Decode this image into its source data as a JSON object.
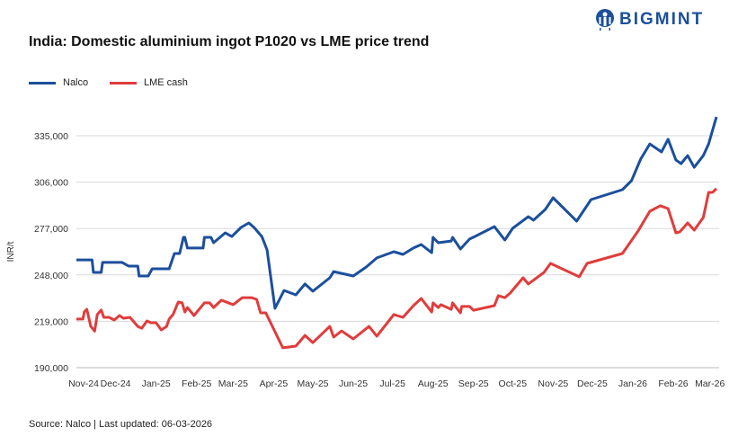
{
  "logo": {
    "text": "BIGMINT",
    "color": "#1c4f9c"
  },
  "source": "Source: Nalco | Last updated: 06-03-2026",
  "chart_data": {
    "type": "line",
    "title": "India: Domestic aluminium ingot P1020 vs LME price trend",
    "xlabel": "",
    "ylabel": "INR/t",
    "ylim": [
      190000,
      335000
    ],
    "yticks": [
      190000,
      219000,
      248000,
      277000,
      306000,
      335000
    ],
    "ytick_labels": [
      "190,000",
      "219,000",
      "248,000",
      "277,000",
      "306,000",
      "335,000"
    ],
    "xtick_labels": [
      "Nov-24",
      "Dec-24",
      "Jan-25",
      "Feb-25",
      "Mar-25",
      "Apr-25",
      "May-25",
      "Jun-25",
      "Jul-25",
      "Aug-25",
      "Sep-25",
      "Oct-25",
      "Nov-25",
      "Dec-25",
      "Jan-26",
      "Feb-26",
      "Mar-26"
    ],
    "xticks": [
      "2024-11-01",
      "2024-12-01",
      "2025-01-01",
      "2025-02-01",
      "2025-03-01",
      "2025-04-01",
      "2025-05-01",
      "2025-06-01",
      "2025-07-01",
      "2025-08-01",
      "2025-09-01",
      "2025-10-01",
      "2025-11-01",
      "2025-12-01",
      "2026-01-01",
      "2026-02-01",
      "2026-03-01"
    ],
    "grid": "horizontal",
    "legend": "top-left",
    "series": [
      {
        "name": "Nalco",
        "color": "#1c4f9c",
        "points": [
          [
            "2024-11-01",
            257400
          ],
          [
            "2024-11-13",
            257400
          ],
          [
            "2024-11-14",
            249600
          ],
          [
            "2024-11-20",
            249600
          ],
          [
            "2024-11-21",
            255800
          ],
          [
            "2024-12-06",
            255800
          ],
          [
            "2024-12-11",
            253500
          ],
          [
            "2024-12-18",
            253500
          ],
          [
            "2024-12-19",
            247300
          ],
          [
            "2024-12-26",
            247300
          ],
          [
            "2024-12-29",
            251800
          ],
          [
            "2025-01-11",
            251800
          ],
          [
            "2025-01-15",
            261400
          ],
          [
            "2025-01-19",
            261400
          ],
          [
            "2025-01-22",
            271500
          ],
          [
            "2025-01-23",
            271500
          ],
          [
            "2025-01-25",
            264800
          ],
          [
            "2025-02-06",
            264800
          ],
          [
            "2025-02-07",
            271500
          ],
          [
            "2025-02-12",
            271500
          ],
          [
            "2025-02-14",
            268100
          ],
          [
            "2025-02-23",
            274300
          ],
          [
            "2025-02-28",
            272000
          ],
          [
            "2025-03-07",
            277700
          ],
          [
            "2025-03-13",
            280500
          ],
          [
            "2025-03-17",
            277700
          ],
          [
            "2025-03-23",
            272000
          ],
          [
            "2025-03-27",
            263600
          ],
          [
            "2025-04-02",
            227100
          ],
          [
            "2025-04-09",
            238300
          ],
          [
            "2025-04-18",
            235500
          ],
          [
            "2025-04-25",
            242300
          ],
          [
            "2025-05-01",
            237800
          ],
          [
            "2025-05-14",
            246200
          ],
          [
            "2025-05-17",
            250100
          ],
          [
            "2025-06-01",
            247300
          ],
          [
            "2025-06-11",
            253000
          ],
          [
            "2025-06-19",
            258600
          ],
          [
            "2025-07-02",
            262500
          ],
          [
            "2025-07-09",
            260800
          ],
          [
            "2025-07-17",
            264800
          ],
          [
            "2025-07-23",
            267000
          ],
          [
            "2025-07-31",
            261900
          ],
          [
            "2025-08-01",
            271500
          ],
          [
            "2025-08-05",
            268100
          ],
          [
            "2025-08-15",
            269200
          ],
          [
            "2025-08-16",
            271500
          ],
          [
            "2025-08-22",
            264200
          ],
          [
            "2025-08-29",
            270400
          ],
          [
            "2025-09-02",
            272000
          ],
          [
            "2025-09-17",
            278200
          ],
          [
            "2025-09-25",
            269800
          ],
          [
            "2025-10-01",
            277100
          ],
          [
            "2025-10-13",
            284400
          ],
          [
            "2025-10-17",
            282200
          ],
          [
            "2025-10-26",
            288900
          ],
          [
            "2025-11-01",
            296200
          ],
          [
            "2025-11-19",
            281600
          ],
          [
            "2025-11-30",
            295100
          ],
          [
            "2025-12-24",
            301300
          ],
          [
            "2025-12-31",
            306900
          ],
          [
            "2026-01-07",
            320400
          ],
          [
            "2026-01-14",
            329900
          ],
          [
            "2026-01-23",
            324900
          ],
          [
            "2026-01-28",
            332800
          ],
          [
            "2026-02-03",
            319800
          ],
          [
            "2026-02-07",
            317600
          ],
          [
            "2026-02-12",
            322600
          ],
          [
            "2026-02-17",
            315300
          ],
          [
            "2026-02-24",
            322600
          ],
          [
            "2026-02-28",
            329900
          ],
          [
            "2026-03-06",
            346800
          ]
        ]
      },
      {
        "name": "LME cash",
        "color": "#e03c3c",
        "points": [
          [
            "2024-11-01",
            220400
          ],
          [
            "2024-11-06",
            220400
          ],
          [
            "2024-11-07",
            224800
          ],
          [
            "2024-11-09",
            226500
          ],
          [
            "2024-11-12",
            215800
          ],
          [
            "2024-11-15",
            212900
          ],
          [
            "2024-11-17",
            223200
          ],
          [
            "2024-11-20",
            226000
          ],
          [
            "2024-11-22",
            221500
          ],
          [
            "2024-11-26",
            221500
          ],
          [
            "2024-11-30",
            219800
          ],
          [
            "2024-12-04",
            222600
          ],
          [
            "2024-12-07",
            220900
          ],
          [
            "2024-12-12",
            221500
          ],
          [
            "2024-12-18",
            215800
          ],
          [
            "2024-12-21",
            214700
          ],
          [
            "2024-12-25",
            219200
          ],
          [
            "2024-12-28",
            218100
          ],
          [
            "2025-01-01",
            218100
          ],
          [
            "2025-01-05",
            213600
          ],
          [
            "2025-01-09",
            215800
          ],
          [
            "2025-01-11",
            220400
          ],
          [
            "2025-01-14",
            223200
          ],
          [
            "2025-01-18",
            231000
          ],
          [
            "2025-01-21",
            230500
          ],
          [
            "2025-01-23",
            224800
          ],
          [
            "2025-01-25",
            227600
          ],
          [
            "2025-01-30",
            222600
          ],
          [
            "2025-02-07",
            230500
          ],
          [
            "2025-02-11",
            230500
          ],
          [
            "2025-02-14",
            227600
          ],
          [
            "2025-02-20",
            232200
          ],
          [
            "2025-03-01",
            229400
          ],
          [
            "2025-03-08",
            233800
          ],
          [
            "2025-03-15",
            233800
          ],
          [
            "2025-03-19",
            232700
          ],
          [
            "2025-03-22",
            224300
          ],
          [
            "2025-03-26",
            224300
          ],
          [
            "2025-04-08",
            202400
          ],
          [
            "2025-04-18",
            203500
          ],
          [
            "2025-04-25",
            210200
          ],
          [
            "2025-05-01",
            205700
          ],
          [
            "2025-05-14",
            215800
          ],
          [
            "2025-05-17",
            209100
          ],
          [
            "2025-05-23",
            213000
          ],
          [
            "2025-06-01",
            208000
          ],
          [
            "2025-06-13",
            215800
          ],
          [
            "2025-06-19",
            209700
          ],
          [
            "2025-07-02",
            223200
          ],
          [
            "2025-07-09",
            221500
          ],
          [
            "2025-07-17",
            228800
          ],
          [
            "2025-07-23",
            233300
          ],
          [
            "2025-07-31",
            224800
          ],
          [
            "2025-08-01",
            230500
          ],
          [
            "2025-08-05",
            227600
          ],
          [
            "2025-08-07",
            229400
          ],
          [
            "2025-08-15",
            226500
          ],
          [
            "2025-08-16",
            230500
          ],
          [
            "2025-08-22",
            224300
          ],
          [
            "2025-08-23",
            228300
          ],
          [
            "2025-08-29",
            228300
          ],
          [
            "2025-09-01",
            225900
          ],
          [
            "2025-09-17",
            228800
          ],
          [
            "2025-09-20",
            235000
          ],
          [
            "2025-09-25",
            233800
          ],
          [
            "2025-09-29",
            236600
          ],
          [
            "2025-10-09",
            246200
          ],
          [
            "2025-10-13",
            242300
          ],
          [
            "2025-10-25",
            249600
          ],
          [
            "2025-10-30",
            255200
          ],
          [
            "2025-11-21",
            246800
          ],
          [
            "2025-11-27",
            255200
          ],
          [
            "2025-12-24",
            261400
          ],
          [
            "2026-01-05",
            275400
          ],
          [
            "2026-01-14",
            287800
          ],
          [
            "2026-01-22",
            291200
          ],
          [
            "2026-01-28",
            289500
          ],
          [
            "2026-02-03",
            274300
          ],
          [
            "2026-02-06",
            274900
          ],
          [
            "2026-02-12",
            280500
          ],
          [
            "2026-02-17",
            276000
          ],
          [
            "2026-02-24",
            283900
          ],
          [
            "2026-02-28",
            299600
          ],
          [
            "2026-03-03",
            299600
          ],
          [
            "2026-03-06",
            301900
          ]
        ]
      }
    ]
  }
}
